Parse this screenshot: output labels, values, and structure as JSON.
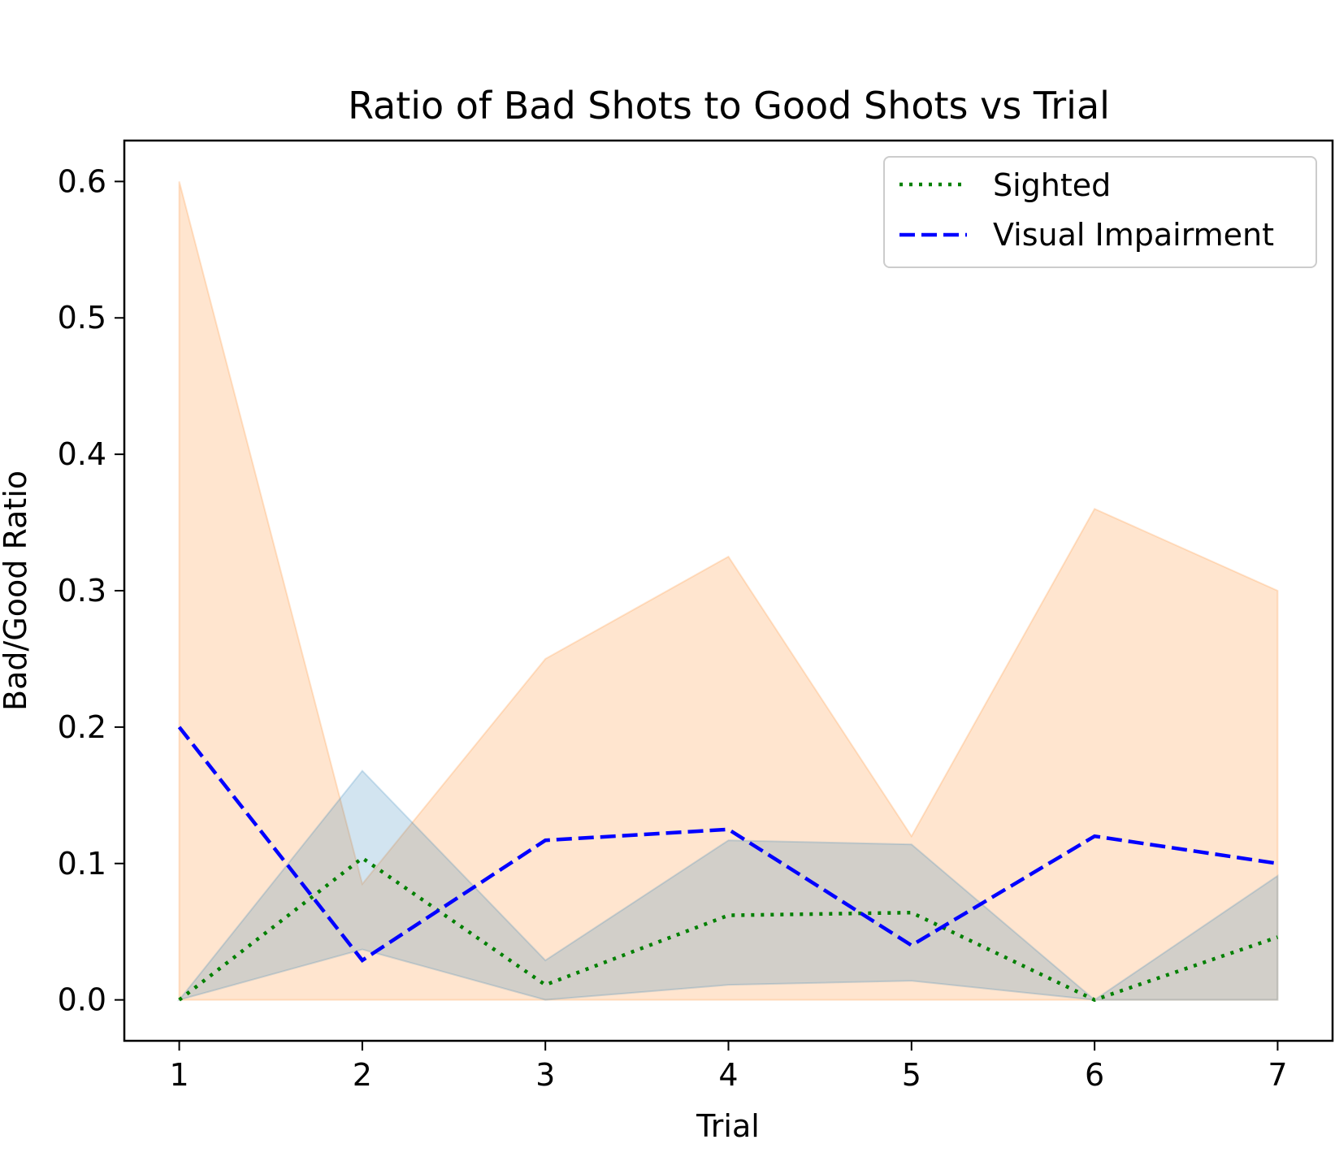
{
  "chart_data": {
    "type": "line",
    "title": "Ratio of Bad Shots to Good Shots vs Trial",
    "xlabel": "Trial",
    "ylabel": "Bad/Good Ratio",
    "xlim": [
      0.7,
      7.3
    ],
    "ylim": [
      -0.03,
      0.63
    ],
    "x_ticks": [
      "1",
      "2",
      "3",
      "4",
      "5",
      "6",
      "7"
    ],
    "y_ticks": [
      "0.0",
      "0.1",
      "0.2",
      "0.3",
      "0.4",
      "0.5",
      "0.6"
    ],
    "x": [
      1,
      2,
      3,
      4,
      5,
      6,
      7
    ],
    "series": [
      {
        "name": "Sighted",
        "color": "#008000",
        "linestyle": "dotted",
        "values": [
          0.0,
          0.104,
          0.011,
          0.062,
          0.064,
          0.0,
          0.046
        ],
        "band_color": "#1f77b4",
        "band_lower": [
          0.0,
          0.037,
          0.0,
          0.011,
          0.014,
          0.0,
          0.0
        ],
        "band_upper": [
          0.0,
          0.168,
          0.029,
          0.117,
          0.114,
          0.0,
          0.091
        ]
      },
      {
        "name": "Visual Impairment",
        "color": "#0000ff",
        "linestyle": "dashed",
        "values": [
          0.2,
          0.029,
          0.117,
          0.125,
          0.04,
          0.12,
          0.1
        ],
        "band_color": "#ff7f0e",
        "band_lower": [
          0.0,
          0.0,
          0.0,
          0.0,
          0.0,
          0.0,
          0.0
        ],
        "band_upper": [
          0.6,
          0.085,
          0.25,
          0.325,
          0.12,
          0.36,
          0.3
        ]
      }
    ],
    "legend": {
      "position": "top-right",
      "entries": [
        "Sighted",
        "Visual Impairment"
      ]
    }
  }
}
